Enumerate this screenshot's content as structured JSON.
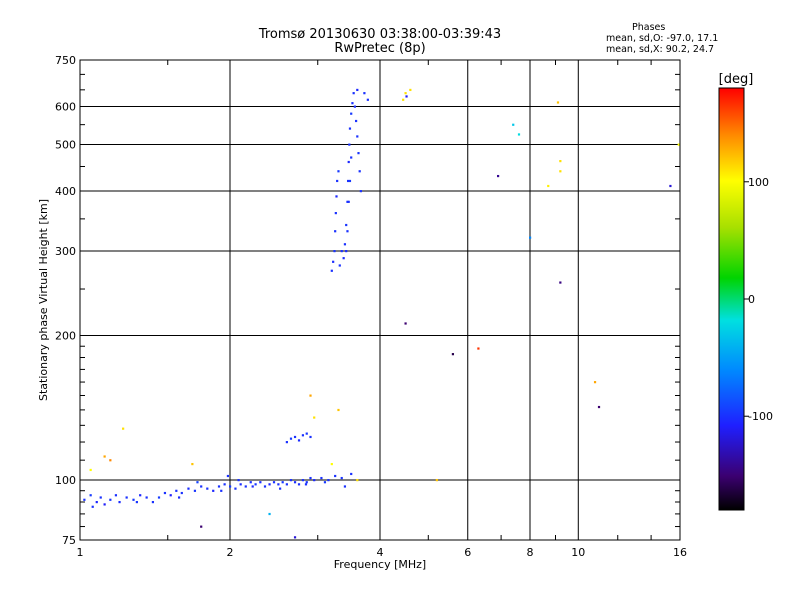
{
  "header": {
    "title": "Tromsø 20130630 03:38:00-03:39:43",
    "subtitle": "RwPretec (8p)"
  },
  "phases_info": {
    "heading": "Phases",
    "line_o": "mean, sd,O: -97.0, 17.1",
    "line_x": "mean, sd,X:  90.2, 24.7"
  },
  "colorbar": {
    "label": "[deg]",
    "range": [
      -180,
      180
    ],
    "ticks": [
      "100",
      "0",
      "-100"
    ],
    "tick_values": [
      100,
      0,
      -100
    ]
  },
  "chart_data": {
    "type": "scatter",
    "xlabel": "Frequency [MHz]",
    "ylabel": "Stationary phase Virtual Height [km]",
    "xscale": "log",
    "yscale": "log",
    "xlim": [
      1,
      16
    ],
    "ylim": [
      75,
      750
    ],
    "grid": true,
    "xticks": [
      {
        "v": 1,
        "label": "1"
      },
      {
        "v": 2,
        "label": "2"
      },
      {
        "v": 4,
        "label": "4"
      },
      {
        "v": 6,
        "label": "6"
      },
      {
        "v": 8,
        "label": "8"
      },
      {
        "v": 10,
        "label": "10"
      },
      {
        "v": 16,
        "label": "16"
      }
    ],
    "yticks": [
      {
        "v": 75,
        "label": "75"
      },
      {
        "v": 100,
        "label": "100"
      },
      {
        "v": 200,
        "label": "200"
      },
      {
        "v": 300,
        "label": "300"
      },
      {
        "v": 400,
        "label": "400"
      },
      {
        "v": 500,
        "label": "500"
      },
      {
        "v": 600,
        "label": "600"
      },
      {
        "v": 750,
        "label": "750"
      }
    ],
    "points": [
      [
        1.02,
        91,
        -100
      ],
      [
        1.05,
        93,
        -95
      ],
      [
        1.08,
        90,
        -105
      ],
      [
        1.1,
        92,
        -100
      ],
      [
        1.12,
        89,
        -110
      ],
      [
        1.15,
        91,
        -98
      ],
      [
        1.18,
        93,
        -100
      ],
      [
        1.2,
        90,
        -102
      ],
      [
        1.24,
        92,
        -100
      ],
      [
        1.28,
        91,
        -96
      ],
      [
        1.32,
        93,
        -104
      ],
      [
        1.36,
        92,
        -100
      ],
      [
        1.4,
        90,
        -100
      ],
      [
        1.44,
        92,
        -95
      ],
      [
        1.48,
        94,
        -100
      ],
      [
        1.52,
        93,
        -108
      ],
      [
        1.56,
        95,
        -100
      ],
      [
        1.6,
        94,
        -100
      ],
      [
        1.65,
        96,
        -102
      ],
      [
        1.7,
        95,
        -98
      ],
      [
        1.75,
        97,
        -100
      ],
      [
        1.8,
        96,
        -100
      ],
      [
        1.85,
        95,
        -105
      ],
      [
        1.9,
        97,
        -100
      ],
      [
        1.95,
        98,
        -100
      ],
      [
        2.0,
        97,
        -96
      ],
      [
        2.05,
        96,
        -100
      ],
      [
        2.1,
        98,
        -102
      ],
      [
        2.15,
        97,
        -100
      ],
      [
        2.2,
        99,
        -100
      ],
      [
        2.25,
        98,
        -98
      ],
      [
        2.3,
        99,
        -100
      ],
      [
        2.35,
        97,
        -100
      ],
      [
        2.4,
        98,
        -104
      ],
      [
        2.45,
        99,
        -100
      ],
      [
        2.5,
        98,
        -100
      ],
      [
        2.55,
        99,
        -96
      ],
      [
        2.6,
        98,
        -100
      ],
      [
        2.65,
        100,
        -100
      ],
      [
        2.7,
        99,
        -102
      ],
      [
        2.75,
        98,
        -100
      ],
      [
        2.8,
        100,
        -100
      ],
      [
        2.85,
        99,
        -98
      ],
      [
        2.9,
        101,
        -100
      ],
      [
        2.95,
        100,
        -104
      ],
      [
        3.05,
        101,
        -100
      ],
      [
        3.15,
        100,
        -100
      ],
      [
        3.25,
        102,
        -100
      ],
      [
        3.35,
        101,
        -98
      ],
      [
        3.5,
        103,
        -100
      ],
      [
        1.06,
        88,
        -100
      ],
      [
        1.3,
        90,
        -98
      ],
      [
        1.58,
        92,
        -102
      ],
      [
        1.92,
        95,
        -100
      ],
      [
        2.22,
        97,
        -104
      ],
      [
        2.52,
        96,
        -100
      ],
      [
        2.84,
        98,
        -100
      ],
      [
        3.1,
        99,
        -96
      ],
      [
        3.4,
        97,
        -100
      ],
      [
        1.72,
        99,
        -92
      ],
      [
        1.98,
        102,
        -100
      ],
      [
        2.08,
        100,
        -100
      ],
      [
        2.6,
        120,
        -100
      ],
      [
        2.65,
        122,
        -95
      ],
      [
        2.7,
        123,
        -100
      ],
      [
        2.75,
        121,
        -102
      ],
      [
        2.8,
        124,
        -100
      ],
      [
        2.85,
        125,
        -98
      ],
      [
        2.9,
        123,
        -100
      ],
      [
        3.2,
        273,
        -100
      ],
      [
        3.22,
        285,
        -102
      ],
      [
        3.24,
        300,
        -98
      ],
      [
        3.25,
        330,
        -100
      ],
      [
        3.26,
        360,
        -100
      ],
      [
        3.27,
        390,
        -104
      ],
      [
        3.28,
        420,
        -100
      ],
      [
        3.3,
        440,
        -96
      ],
      [
        3.32,
        280,
        -100
      ],
      [
        3.35,
        300,
        -100
      ],
      [
        3.38,
        290,
        -102
      ],
      [
        3.4,
        310,
        -100
      ],
      [
        3.42,
        340,
        -98
      ],
      [
        3.44,
        380,
        -100
      ],
      [
        3.45,
        420,
        -100
      ],
      [
        3.46,
        460,
        -104
      ],
      [
        3.47,
        500,
        -100
      ],
      [
        3.48,
        540,
        -100
      ],
      [
        3.5,
        580,
        -96
      ],
      [
        3.52,
        610,
        -100
      ],
      [
        3.54,
        640,
        -100
      ],
      [
        3.56,
        600,
        -102
      ],
      [
        3.58,
        560,
        -100
      ],
      [
        3.6,
        520,
        -100
      ],
      [
        3.62,
        480,
        -98
      ],
      [
        3.64,
        440,
        -100
      ],
      [
        3.66,
        400,
        -100
      ],
      [
        3.6,
        650,
        -104
      ],
      [
        3.72,
        640,
        -100
      ],
      [
        3.78,
        620,
        -100
      ],
      [
        3.5,
        470,
        -100
      ],
      [
        3.48,
        420,
        -96
      ],
      [
        3.46,
        380,
        -100
      ],
      [
        3.44,
        330,
        -100
      ],
      [
        3.42,
        300,
        -102
      ],
      [
        4.45,
        620,
        110
      ],
      [
        4.5,
        640,
        110
      ],
      [
        4.52,
        630,
        -110
      ],
      [
        4.6,
        650,
        110
      ],
      [
        4.5,
        212,
        -150
      ],
      [
        1.12,
        112,
        130
      ],
      [
        1.15,
        110,
        140
      ],
      [
        1.22,
        128,
        110
      ],
      [
        1.68,
        108,
        120
      ],
      [
        2.9,
        150,
        130
      ],
      [
        2.95,
        135,
        110
      ],
      [
        1.05,
        105,
        100
      ],
      [
        3.2,
        108,
        100
      ],
      [
        3.3,
        140,
        120
      ],
      [
        3.6,
        100,
        110
      ],
      [
        5.2,
        100,
        120
      ],
      [
        2.4,
        85,
        -40
      ],
      [
        1.75,
        80,
        -150
      ],
      [
        2.7,
        76,
        -120
      ],
      [
        6.9,
        430,
        -140
      ],
      [
        5.6,
        183,
        -160
      ],
      [
        6.3,
        188,
        165
      ],
      [
        7.4,
        550,
        -30
      ],
      [
        7.6,
        525,
        -20
      ],
      [
        8.0,
        320,
        -60
      ],
      [
        9.1,
        612,
        120
      ],
      [
        9.2,
        462,
        110
      ],
      [
        9.2,
        440,
        110
      ],
      [
        8.7,
        410,
        105
      ],
      [
        9.2,
        258,
        -145
      ],
      [
        10.8,
        160,
        130
      ],
      [
        11.0,
        142,
        -150
      ],
      [
        15.3,
        410,
        -120
      ],
      [
        15.9,
        500,
        100
      ]
    ]
  }
}
